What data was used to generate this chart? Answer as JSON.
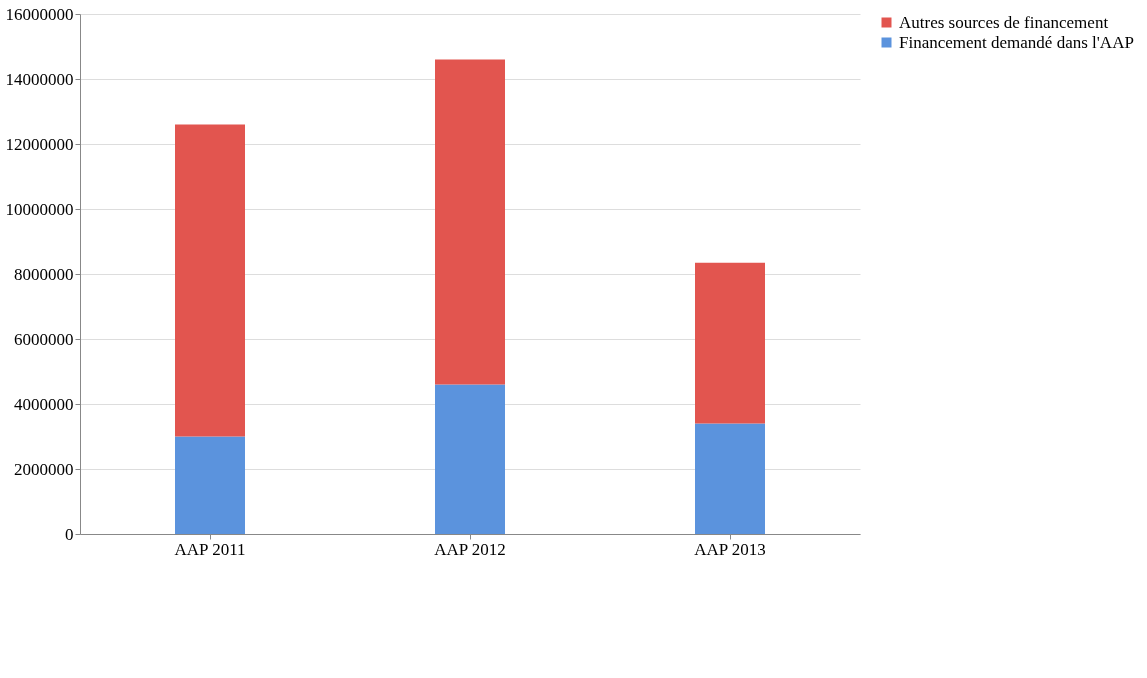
{
  "chart_data": {
    "type": "bar",
    "stacked": true,
    "categories": [
      "AAP 2011",
      "AAP 2012",
      "AAP 2013"
    ],
    "series": [
      {
        "name": "Financement demandé dans l'AAP",
        "color": "#5b93dd",
        "values": [
          3000000,
          4600000,
          3400000
        ]
      },
      {
        "name": "Autres sources de financement",
        "color": "#e2554f",
        "values": [
          9600000,
          10000000,
          4950000
        ]
      }
    ],
    "ylim": [
      0,
      16000000
    ],
    "yticks": [
      0,
      2000000,
      4000000,
      6000000,
      8000000,
      10000000,
      12000000,
      14000000,
      16000000
    ],
    "grid": "y",
    "legend": "right"
  }
}
